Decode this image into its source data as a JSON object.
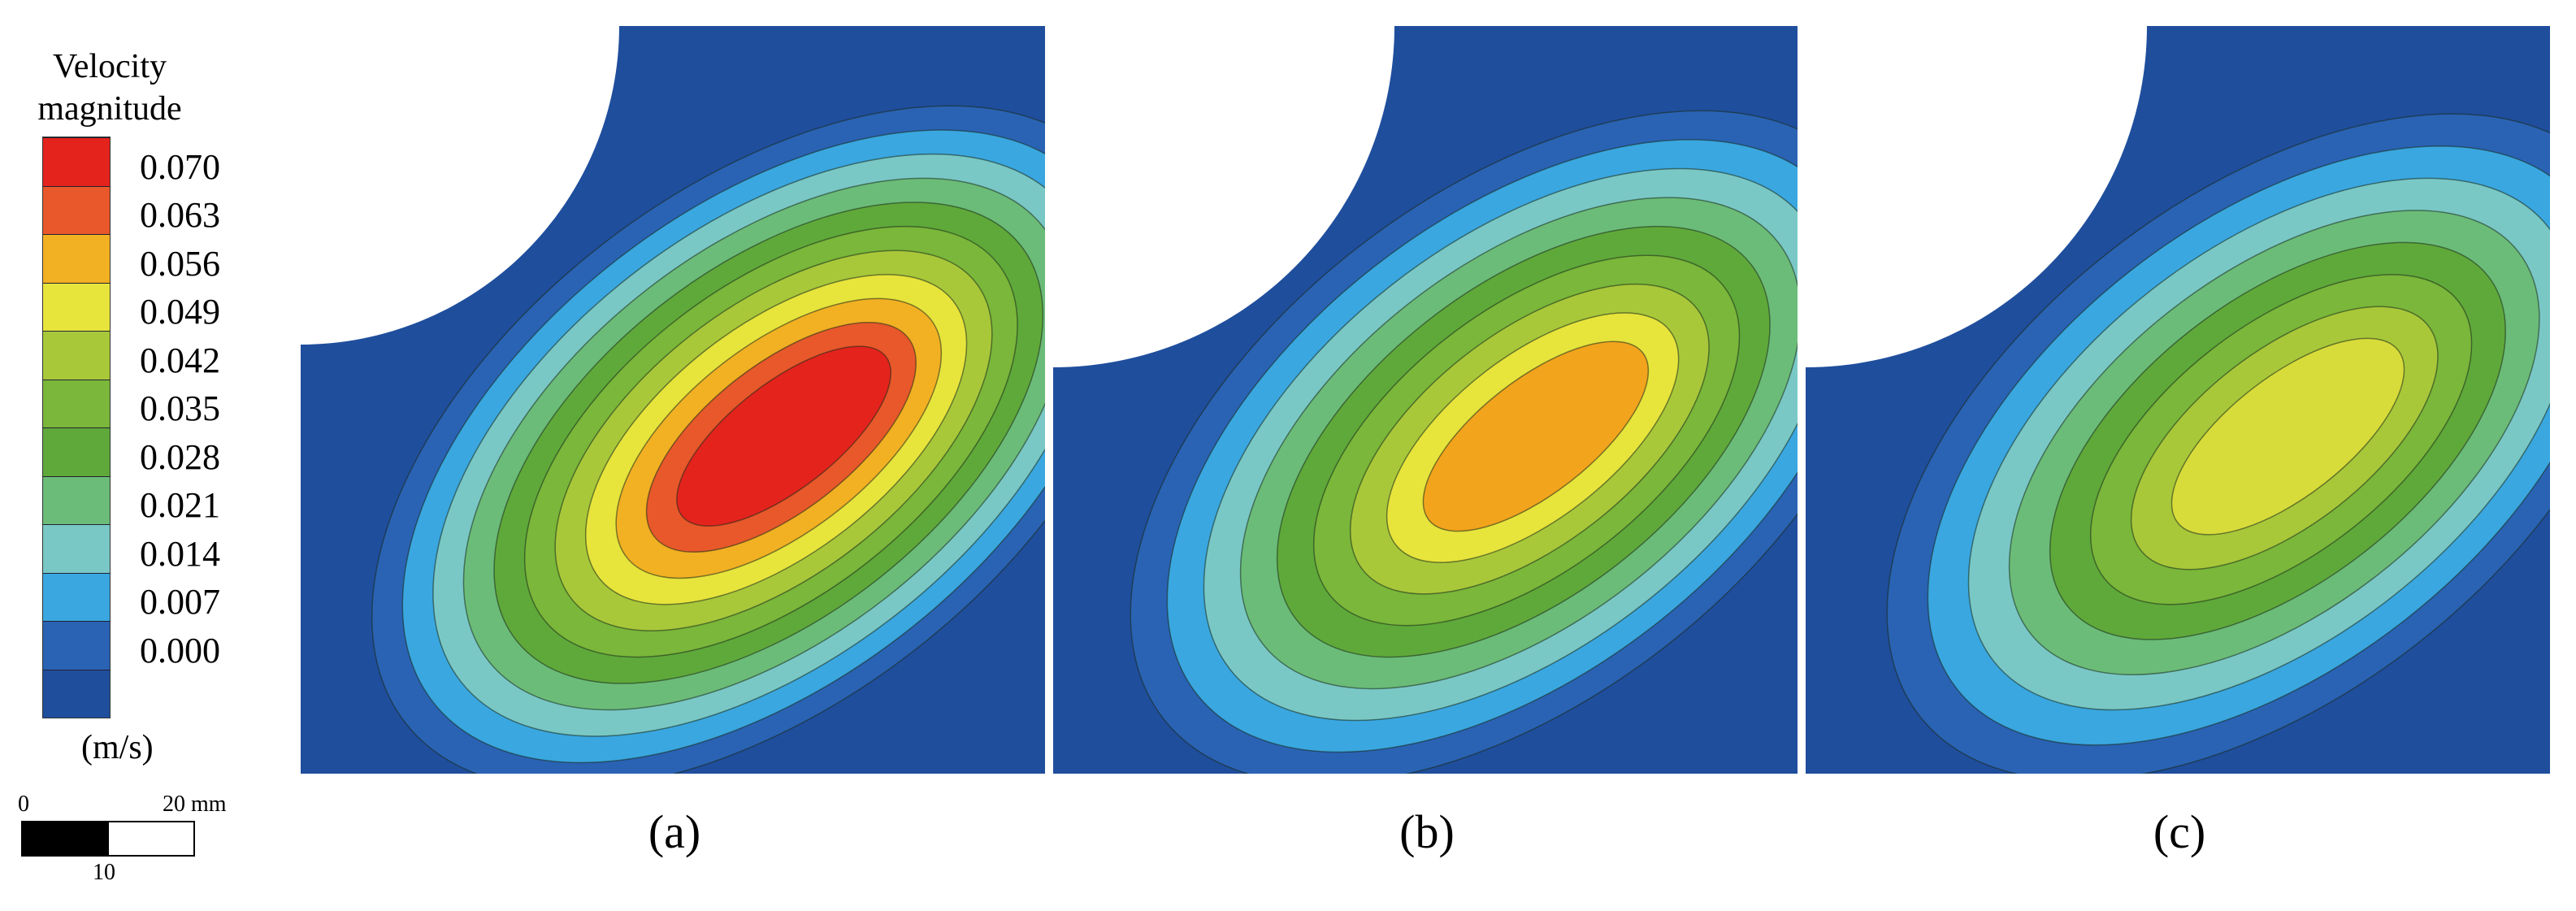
{
  "legend": {
    "title_line1": "Velocity",
    "title_line2": "magnitude",
    "unit": "(m/s)",
    "levels": [
      "0.070",
      "0.063",
      "0.056",
      "0.049",
      "0.042",
      "0.035",
      "0.028",
      "0.021",
      "0.014",
      "0.007",
      "0.000"
    ],
    "colors": [
      "#e4231d",
      "#e8582a",
      "#f2b023",
      "#e7e43c",
      "#a8c83a",
      "#7ab73a",
      "#5fa93a",
      "#6bbc78",
      "#79c8c6",
      "#3aa7e0",
      "#2a63b4",
      "#1f4e9d"
    ]
  },
  "scalebar": {
    "zero": "0",
    "end": "20 mm",
    "mid": "10"
  },
  "panels": [
    {
      "label": "(a)",
      "peak_color": "#e4231d"
    },
    {
      "label": "(b)",
      "peak_color": "#f2a41d"
    },
    {
      "label": "(c)",
      "peak_color": "#d8dc3a"
    }
  ]
}
